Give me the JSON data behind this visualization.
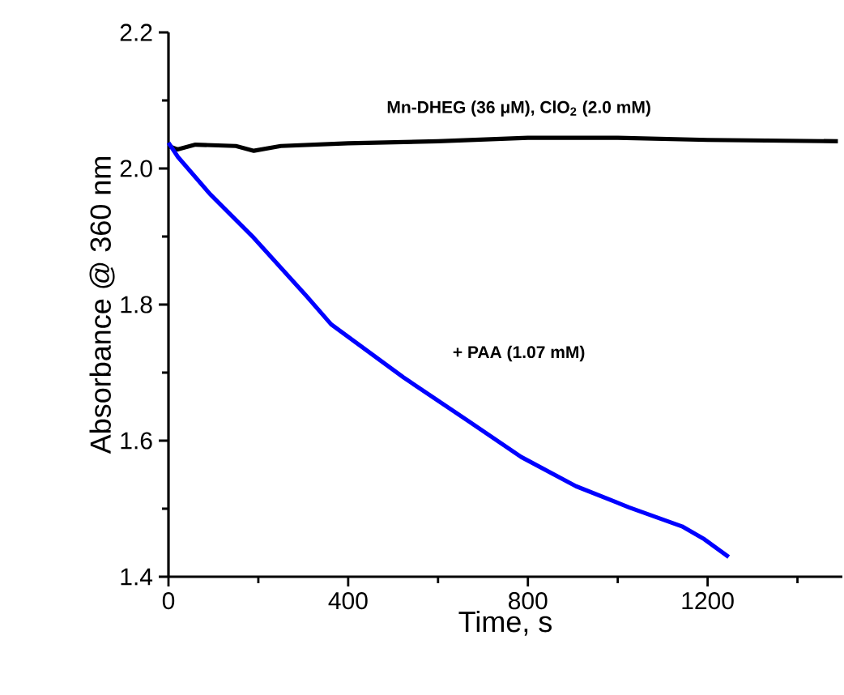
{
  "chart_data": {
    "type": "line",
    "xlabel": "Time, s",
    "ylabel": "Absorbance @ 360 nm",
    "xlim": [
      0,
      1500
    ],
    "xticks": [
      0,
      400,
      800,
      1200
    ],
    "ylim": [
      1.4,
      2.2
    ],
    "yticks": [
      1.4,
      1.6,
      1.8,
      {
        "value": 2.0,
        "label": "2.0"
      },
      2.2
    ],
    "series": [
      {
        "name": "Mn-DHEG (36 μM), ClO$_{2}$ (2.0 mM)",
        "color": "#000000",
        "x": [
          0,
          20,
          60,
          150,
          190,
          250,
          400,
          600,
          800,
          1000,
          1200,
          1490
        ],
        "values": [
          2.033,
          2.028,
          2.035,
          2.033,
          2.026,
          2.033,
          2.037,
          2.04,
          2.045,
          2.045,
          2.042,
          2.04
        ]
      },
      {
        "name": "+ PAA (1.07 mM)",
        "color": "#0000ff",
        "x": [
          0,
          21,
          93,
          190,
          308,
          362,
          523,
          667,
          785,
          907,
          1025,
          1143,
          1193,
          1247
        ],
        "values": [
          2.038,
          2.017,
          1.962,
          1.898,
          1.812,
          1.771,
          1.693,
          1.629,
          1.576,
          1.533,
          1.502,
          1.474,
          1.455,
          1.429
        ]
      }
    ]
  }
}
